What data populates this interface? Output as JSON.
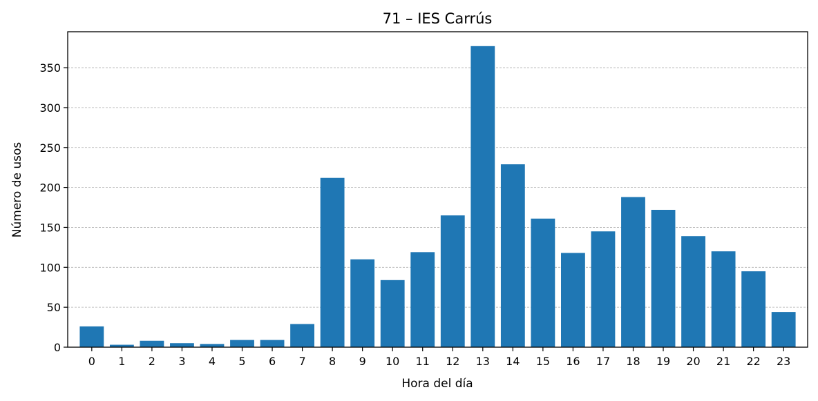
{
  "chart_data": {
    "type": "bar",
    "title": "71 – IES Carrús",
    "xlabel": "Hora del día",
    "ylabel": "Número de usos",
    "categories": [
      "0",
      "1",
      "2",
      "3",
      "4",
      "5",
      "6",
      "7",
      "8",
      "9",
      "10",
      "11",
      "12",
      "13",
      "14",
      "15",
      "16",
      "17",
      "18",
      "19",
      "20",
      "21",
      "22",
      "23"
    ],
    "values": [
      26,
      3,
      8,
      5,
      4,
      9,
      9,
      29,
      212,
      110,
      84,
      119,
      165,
      377,
      229,
      161,
      118,
      145,
      188,
      172,
      139,
      120,
      95,
      44
    ],
    "ylim": [
      0,
      395
    ],
    "yticks": [
      0,
      50,
      100,
      150,
      200,
      250,
      300,
      350
    ],
    "grid": "y-dashed",
    "bar_color": "#1f77b4",
    "legend": "none"
  }
}
